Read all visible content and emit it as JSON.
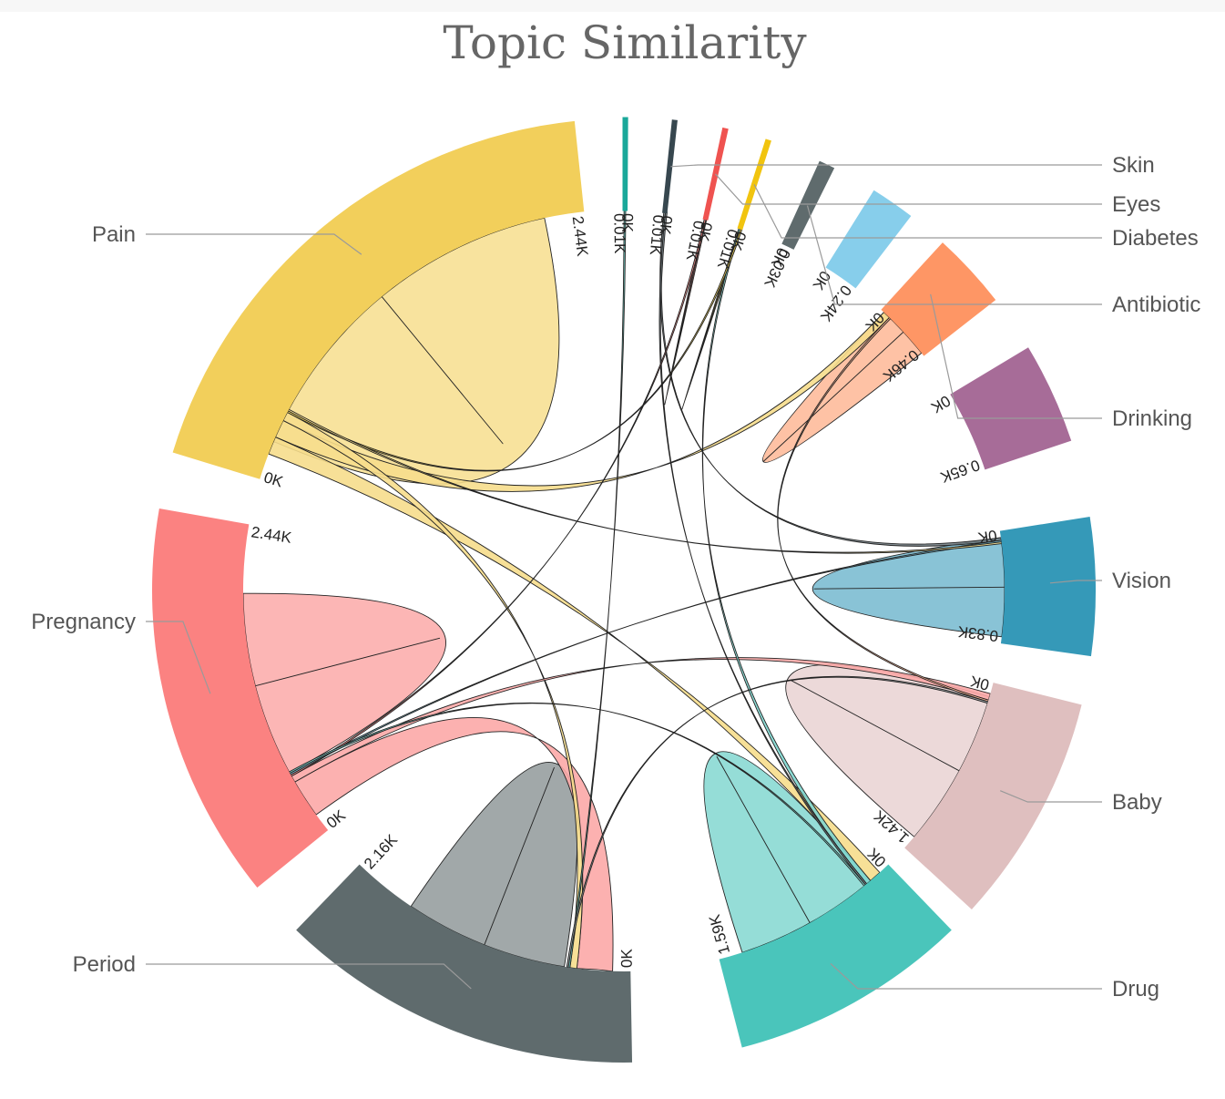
{
  "chart_data": {
    "type": "chord",
    "title": "Topic Similarity",
    "groups": [
      {
        "name": "Skin",
        "total": 0.01,
        "start_label": "0K",
        "end_label": "0.01K",
        "color": "#1aa89a"
      },
      {
        "name": "Eyes",
        "total": 0.01,
        "start_label": "0K",
        "end_label": "0.01K",
        "color": "#37474f"
      },
      {
        "name": "Diabetes",
        "total": 0.01,
        "start_label": "0K",
        "end_label": "0.01K",
        "color": "#ef5350"
      },
      {
        "name": "Antibiotic",
        "total": 0.01,
        "start_label": "0K",
        "end_label": "0.01K",
        "color": "#f1c40f"
      },
      {
        "name": "Drinking",
        "total": 0.03,
        "start_label": "0K",
        "end_label": "0.03K",
        "color": "#5f6b6d"
      },
      {
        "name": "Vision",
        "total": 0.24,
        "start_label": "0K",
        "end_label": "0.24K",
        "color": "#87ceeb"
      },
      {
        "name": "Baby",
        "total": 0.46,
        "start_label": "0K",
        "end_label": "0.46K",
        "color": "#fe9665"
      },
      {
        "name": "Drug",
        "total": 0.65,
        "start_label": "0K",
        "end_label": "0.65K",
        "color": "#a76c98"
      },
      {
        "name": "Period",
        "total": 0.83,
        "start_label": "0K",
        "end_label": "0.83K",
        "color": "#3599b8"
      },
      {
        "name": "Pregnancy",
        "total": 1.42,
        "start_label": "0K",
        "end_label": "1.42K",
        "color": "#dfbfbf"
      },
      {
        "name": "Pain",
        "total": 1.59,
        "start_label": "0K",
        "end_label": "1.59K",
        "color": "#4ac5bb"
      },
      {
        "name": "",
        "total": 2.16,
        "start_label": "0K",
        "end_label": "2.16K",
        "color": "#5f6b6d"
      },
      {
        "name": "",
        "total": 2.44,
        "start_label": "0K",
        "end_label": "2.44K",
        "color": "#fb8281"
      },
      {
        "name": "",
        "total": 2.44,
        "start_label": "0K",
        "end_label": "2.44K",
        "color": "#f2cf5b"
      }
    ],
    "legend": [
      "Skin",
      "Eyes",
      "Diabetes",
      "Antibiotic",
      "Drinking",
      "Vision",
      "Baby",
      "Drug",
      "Period",
      "Pregnancy",
      "Pain"
    ],
    "chords": [
      {
        "source": "Pain",
        "target": "Pain",
        "value": 2.0
      },
      {
        "source": "Pregnancy",
        "target": "Pregnancy",
        "value": 1.4
      },
      {
        "source": "Period",
        "target": "Period",
        "value": 1.2
      },
      {
        "source": "Drug",
        "target": "Drug",
        "value": 1.2
      },
      {
        "source": "Baby",
        "target": "Baby",
        "value": 1.2
      },
      {
        "source": "Vision",
        "target": "Vision",
        "value": 0.75
      },
      {
        "source": "Drinking",
        "target": "Drinking",
        "value": 0.45
      },
      {
        "source": "Antibiotic",
        "target": "Antibiotic",
        "value": 0.3
      },
      {
        "source": "Diabetes",
        "target": "Diabetes",
        "value": 0.15
      },
      {
        "source": "Pregnancy",
        "target": "Period",
        "value": 0.9
      },
      {
        "source": "Pain",
        "target": "Drug",
        "value": 0.1
      },
      {
        "source": "Pain",
        "target": "Drinking",
        "value": 0.1
      },
      {
        "source": "Pain",
        "target": "Period",
        "value": 0.05
      },
      {
        "source": "Pregnancy",
        "target": "Baby",
        "value": 0.05
      },
      {
        "source": "Drug",
        "target": "Antibiotic",
        "value": 0.04
      },
      {
        "source": "Eyes",
        "target": "Vision",
        "value": 0.02
      },
      {
        "source": "Skin",
        "target": "Period",
        "value": 0.005
      },
      {
        "source": "Eyes",
        "target": "Drug",
        "value": 0.005
      },
      {
        "source": "Diabetes",
        "target": "Pregnancy",
        "value": 0.005
      },
      {
        "source": "Antibiotic",
        "target": "Pain",
        "value": 0.005
      },
      {
        "source": "Drinking",
        "target": "Baby",
        "value": 0.005
      },
      {
        "source": "Vision",
        "target": "Pregnancy",
        "value": 0.005
      },
      {
        "source": "Period",
        "target": "Baby",
        "value": 0.005
      },
      {
        "source": "Pain",
        "target": "Vision",
        "value": 0.005
      },
      {
        "source": "Drug",
        "target": "Pregnancy",
        "value": 0.005
      }
    ]
  }
}
